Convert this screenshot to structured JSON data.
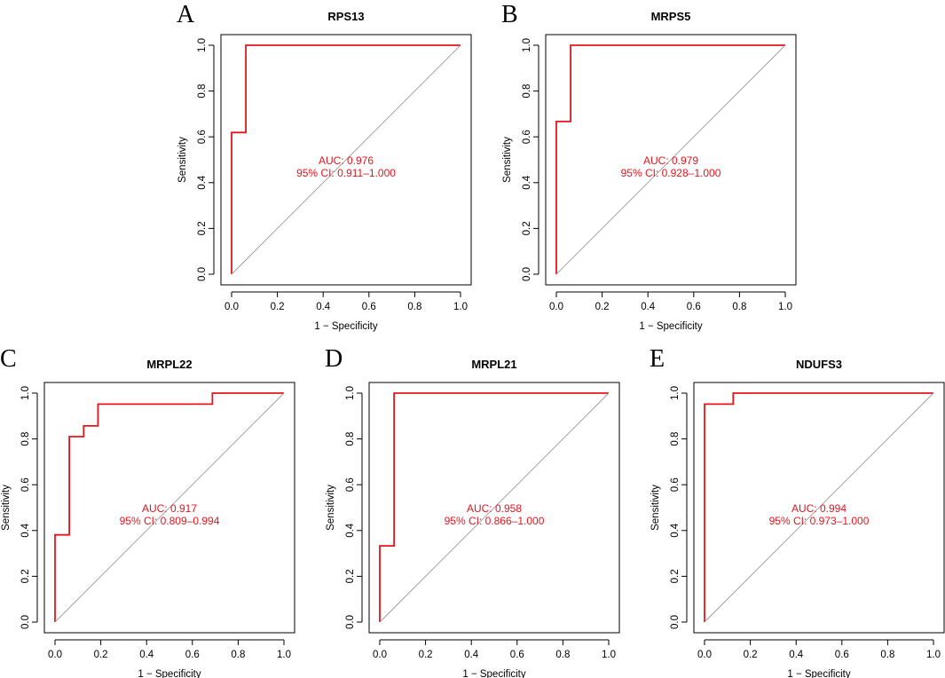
{
  "figure": {
    "colors": {
      "roc": "#e8141c",
      "diagonal": "#9a9a9a",
      "axis": "#000000"
    }
  },
  "chart_data": [
    {
      "type": "line",
      "panel": "A",
      "title": "RPS13",
      "xlabel": "1 − Specificity",
      "ylabel": "Sensitivity",
      "xlim": [
        0,
        1
      ],
      "ylim": [
        0,
        1
      ],
      "xticks": [
        "0.0",
        "0.2",
        "0.4",
        "0.6",
        "0.8",
        "1.0"
      ],
      "yticks": [
        "0.0",
        "0.2",
        "0.4",
        "0.6",
        "0.8",
        "1.0"
      ],
      "series": [
        {
          "name": "ROC",
          "x": [
            0,
            0,
            0.0625,
            0.0625,
            1
          ],
          "y": [
            0,
            0.619,
            0.619,
            1,
            1
          ]
        },
        {
          "name": "reference",
          "x": [
            0,
            1
          ],
          "y": [
            0,
            1
          ]
        }
      ],
      "annotations": {
        "auc": "AUC: 0.976",
        "ci": "95% CI: 0.911–1.000"
      }
    },
    {
      "type": "line",
      "panel": "B",
      "title": "MRPS5",
      "xlabel": "1 − Specificity",
      "ylabel": "Sensitivity",
      "xlim": [
        0,
        1
      ],
      "ylim": [
        0,
        1
      ],
      "xticks": [
        "0.0",
        "0.2",
        "0.4",
        "0.6",
        "0.8",
        "1.0"
      ],
      "yticks": [
        "0.0",
        "0.2",
        "0.4",
        "0.6",
        "0.8",
        "1.0"
      ],
      "series": [
        {
          "name": "ROC",
          "x": [
            0,
            0,
            0.0625,
            0.0625,
            1
          ],
          "y": [
            0,
            0.667,
            0.667,
            1,
            1
          ]
        },
        {
          "name": "reference",
          "x": [
            0,
            1
          ],
          "y": [
            0,
            1
          ]
        }
      ],
      "annotations": {
        "auc": "AUC: 0.979",
        "ci": "95% CI: 0.928–1.000"
      }
    },
    {
      "type": "line",
      "panel": "C",
      "title": "MRPL22",
      "xlabel": "1 − Specificity",
      "ylabel": "Sensitivity",
      "xlim": [
        0,
        1
      ],
      "ylim": [
        0,
        1
      ],
      "xticks": [
        "0.0",
        "0.2",
        "0.4",
        "0.6",
        "0.8",
        "1.0"
      ],
      "yticks": [
        "0.0",
        "0.2",
        "0.4",
        "0.6",
        "0.8",
        "1.0"
      ],
      "series": [
        {
          "name": "ROC",
          "x": [
            0,
            0,
            0.0625,
            0.0625,
            0.125,
            0.125,
            0.1875,
            0.1875,
            0.6875,
            0.6875,
            1
          ],
          "y": [
            0,
            0.381,
            0.381,
            0.81,
            0.81,
            0.857,
            0.857,
            0.952,
            0.952,
            1,
            1
          ]
        },
        {
          "name": "reference",
          "x": [
            0,
            1
          ],
          "y": [
            0,
            1
          ]
        }
      ],
      "annotations": {
        "auc": "AUC: 0.917",
        "ci": "95% CI: 0.809–0.994"
      }
    },
    {
      "type": "line",
      "panel": "D",
      "title": "MRPL21",
      "xlabel": "1 − Specificity",
      "ylabel": "Sensitivity",
      "xlim": [
        0,
        1
      ],
      "ylim": [
        0,
        1
      ],
      "xticks": [
        "0.0",
        "0.2",
        "0.4",
        "0.6",
        "0.8",
        "1.0"
      ],
      "yticks": [
        "0.0",
        "0.2",
        "0.4",
        "0.6",
        "0.8",
        "1.0"
      ],
      "series": [
        {
          "name": "ROC",
          "x": [
            0,
            0,
            0.0625,
            0.0625,
            1
          ],
          "y": [
            0,
            0.333,
            0.333,
            1,
            1
          ]
        },
        {
          "name": "reference",
          "x": [
            0,
            1
          ],
          "y": [
            0,
            1
          ]
        }
      ],
      "annotations": {
        "auc": "AUC: 0.958",
        "ci": "95% CI: 0.866–1.000"
      }
    },
    {
      "type": "line",
      "panel": "E",
      "title": "NDUFS3",
      "xlabel": "1 − Specificity",
      "ylabel": "Sensitivity",
      "xlim": [
        0,
        1
      ],
      "ylim": [
        0,
        1
      ],
      "xticks": [
        "0.0",
        "0.2",
        "0.4",
        "0.6",
        "0.8",
        "1.0"
      ],
      "yticks": [
        "0.0",
        "0.2",
        "0.4",
        "0.6",
        "0.8",
        "1.0"
      ],
      "series": [
        {
          "name": "ROC",
          "x": [
            0,
            0,
            0.125,
            0.125,
            1
          ],
          "y": [
            0,
            0.952,
            0.952,
            1,
            1
          ]
        },
        {
          "name": "reference",
          "x": [
            0,
            1
          ],
          "y": [
            0,
            1
          ]
        }
      ],
      "annotations": {
        "auc": "AUC: 0.994",
        "ci": "95% CI: 0.973–1.000"
      }
    }
  ]
}
